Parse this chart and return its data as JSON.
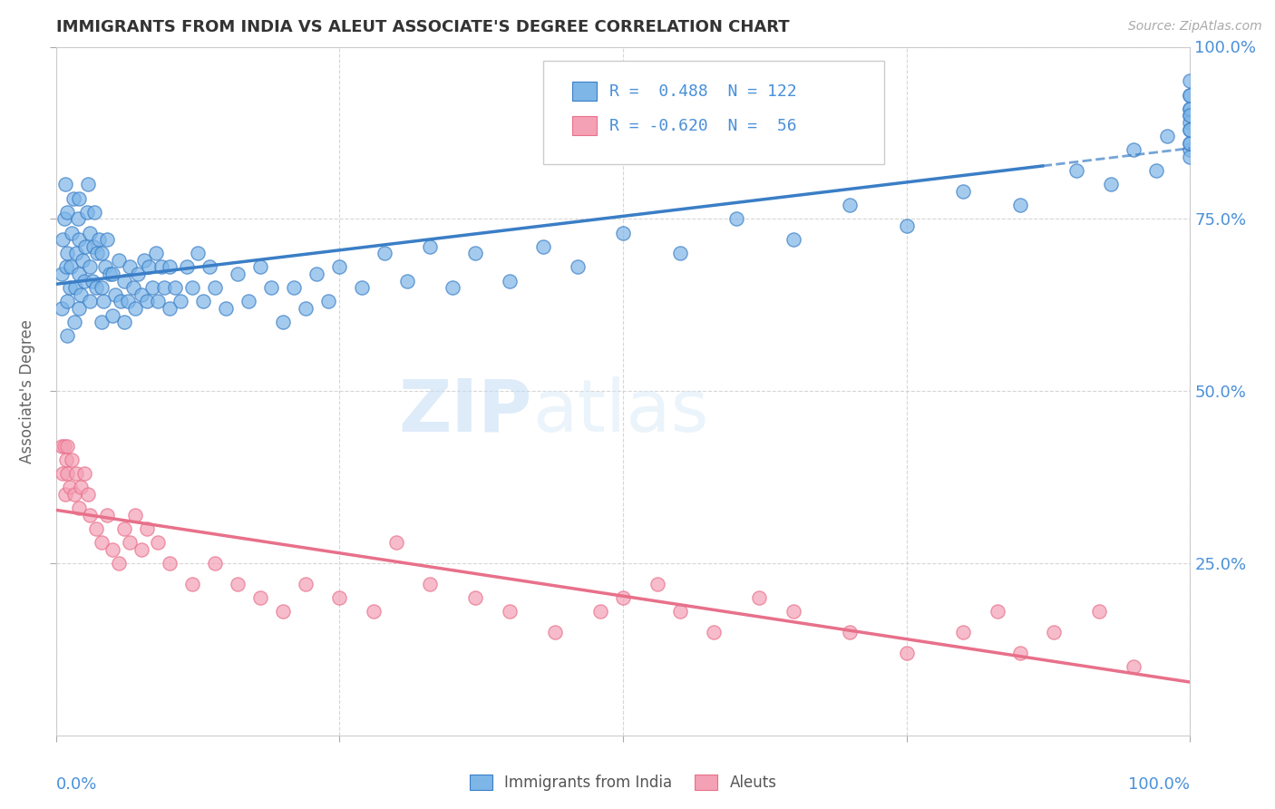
{
  "title": "IMMIGRANTS FROM INDIA VS ALEUT ASSOCIATE'S DEGREE CORRELATION CHART",
  "source": "Source: ZipAtlas.com",
  "ylabel": "Associate's Degree",
  "legend_blue_r": "0.488",
  "legend_blue_n": "122",
  "legend_pink_r": "-0.620",
  "legend_pink_n": "56",
  "blue_color": "#7EB6E8",
  "pink_color": "#F4A0B5",
  "blue_line_color": "#3A7EC6",
  "pink_line_color": "#E8708A",
  "watermark_zip": "ZIP",
  "watermark_atlas": "atlas",
  "blue_r": 0.488,
  "pink_r": -0.62,
  "blue_intercept": 0.58,
  "blue_slope": 0.42,
  "pink_intercept": 0.42,
  "pink_slope": -0.32,
  "xlim": [
    0.0,
    1.0
  ],
  "ylim": [
    0.0,
    1.0
  ],
  "ytick_positions": [
    0.25,
    0.5,
    0.75,
    1.0
  ],
  "ytick_labels": [
    "25.0%",
    "50.0%",
    "75.0%",
    "100.0%"
  ],
  "blue_x": [
    0.005,
    0.005,
    0.006,
    0.007,
    0.008,
    0.009,
    0.01,
    0.01,
    0.01,
    0.01,
    0.012,
    0.013,
    0.014,
    0.015,
    0.016,
    0.017,
    0.018,
    0.019,
    0.02,
    0.02,
    0.02,
    0.02,
    0.022,
    0.023,
    0.025,
    0.026,
    0.027,
    0.028,
    0.03,
    0.03,
    0.03,
    0.032,
    0.033,
    0.034,
    0.035,
    0.036,
    0.038,
    0.04,
    0.04,
    0.04,
    0.042,
    0.043,
    0.045,
    0.047,
    0.05,
    0.05,
    0.052,
    0.055,
    0.057,
    0.06,
    0.06,
    0.063,
    0.065,
    0.068,
    0.07,
    0.072,
    0.075,
    0.078,
    0.08,
    0.082,
    0.085,
    0.088,
    0.09,
    0.093,
    0.095,
    0.1,
    0.1,
    0.105,
    0.11,
    0.115,
    0.12,
    0.125,
    0.13,
    0.135,
    0.14,
    0.15,
    0.16,
    0.17,
    0.18,
    0.19,
    0.2,
    0.21,
    0.22,
    0.23,
    0.24,
    0.25,
    0.27,
    0.29,
    0.31,
    0.33,
    0.35,
    0.37,
    0.4,
    0.43,
    0.46,
    0.5,
    0.55,
    0.6,
    0.65,
    0.7,
    0.75,
    0.8,
    0.85,
    0.9,
    0.93,
    0.95,
    0.97,
    0.98,
    1.0,
    1.0,
    1.0,
    1.0,
    1.0,
    1.0,
    1.0,
    1.0,
    1.0,
    1.0,
    1.0,
    1.0,
    1.0,
    1.0
  ],
  "blue_y": [
    0.62,
    0.67,
    0.72,
    0.75,
    0.8,
    0.68,
    0.58,
    0.63,
    0.7,
    0.76,
    0.65,
    0.68,
    0.73,
    0.78,
    0.6,
    0.65,
    0.7,
    0.75,
    0.62,
    0.67,
    0.72,
    0.78,
    0.64,
    0.69,
    0.66,
    0.71,
    0.76,
    0.8,
    0.63,
    0.68,
    0.73,
    0.66,
    0.71,
    0.76,
    0.65,
    0.7,
    0.72,
    0.6,
    0.65,
    0.7,
    0.63,
    0.68,
    0.72,
    0.67,
    0.61,
    0.67,
    0.64,
    0.69,
    0.63,
    0.6,
    0.66,
    0.63,
    0.68,
    0.65,
    0.62,
    0.67,
    0.64,
    0.69,
    0.63,
    0.68,
    0.65,
    0.7,
    0.63,
    0.68,
    0.65,
    0.62,
    0.68,
    0.65,
    0.63,
    0.68,
    0.65,
    0.7,
    0.63,
    0.68,
    0.65,
    0.62,
    0.67,
    0.63,
    0.68,
    0.65,
    0.6,
    0.65,
    0.62,
    0.67,
    0.63,
    0.68,
    0.65,
    0.7,
    0.66,
    0.71,
    0.65,
    0.7,
    0.66,
    0.71,
    0.68,
    0.73,
    0.7,
    0.75,
    0.72,
    0.77,
    0.74,
    0.79,
    0.77,
    0.82,
    0.8,
    0.85,
    0.82,
    0.87,
    0.85,
    0.9,
    0.84,
    0.89,
    0.86,
    0.91,
    0.86,
    0.91,
    0.88,
    0.93,
    0.9,
    0.95,
    0.88,
    0.93
  ],
  "pink_x": [
    0.005,
    0.006,
    0.007,
    0.008,
    0.009,
    0.01,
    0.01,
    0.012,
    0.014,
    0.016,
    0.018,
    0.02,
    0.022,
    0.025,
    0.028,
    0.03,
    0.035,
    0.04,
    0.045,
    0.05,
    0.055,
    0.06,
    0.065,
    0.07,
    0.075,
    0.08,
    0.09,
    0.1,
    0.12,
    0.14,
    0.16,
    0.18,
    0.2,
    0.22,
    0.25,
    0.28,
    0.3,
    0.33,
    0.37,
    0.4,
    0.44,
    0.48,
    0.5,
    0.53,
    0.55,
    0.58,
    0.62,
    0.65,
    0.7,
    0.75,
    0.8,
    0.83,
    0.85,
    0.88,
    0.92,
    0.95
  ],
  "pink_y": [
    0.42,
    0.38,
    0.42,
    0.35,
    0.4,
    0.38,
    0.42,
    0.36,
    0.4,
    0.35,
    0.38,
    0.33,
    0.36,
    0.38,
    0.35,
    0.32,
    0.3,
    0.28,
    0.32,
    0.27,
    0.25,
    0.3,
    0.28,
    0.32,
    0.27,
    0.3,
    0.28,
    0.25,
    0.22,
    0.25,
    0.22,
    0.2,
    0.18,
    0.22,
    0.2,
    0.18,
    0.28,
    0.22,
    0.2,
    0.18,
    0.15,
    0.18,
    0.2,
    0.22,
    0.18,
    0.15,
    0.2,
    0.18,
    0.15,
    0.12,
    0.15,
    0.18,
    0.12,
    0.15,
    0.18,
    0.1
  ]
}
